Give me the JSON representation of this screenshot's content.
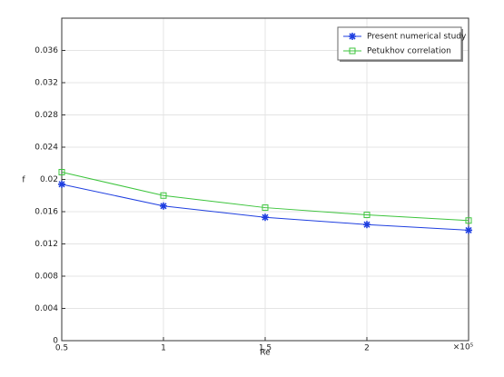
{
  "chart_data": {
    "type": "line",
    "x_label": "Re",
    "y_label": "f",
    "x_multiplier": "×10⁵",
    "x": [
      0.5,
      1,
      1.5,
      2,
      2.5
    ],
    "series": [
      {
        "name": "Present numerical study",
        "color": "#1f3fe0",
        "marker": "asterisk",
        "values": [
          0.0194,
          0.0167,
          0.0153,
          0.0144,
          0.0137
        ]
      },
      {
        "name": "Petukhov correlation",
        "color": "#3cc43c",
        "marker": "square",
        "values": [
          0.0209,
          0.018,
          0.0165,
          0.0156,
          0.0149
        ]
      }
    ],
    "xlim": [
      0.5,
      2.5
    ],
    "ylim": [
      0,
      0.04
    ],
    "xticks": [
      0.5,
      1,
      1.5,
      2
    ],
    "yticks": [
      0,
      0.004,
      0.008,
      0.012,
      0.016,
      0.02,
      0.024,
      0.028,
      0.032,
      0.036
    ],
    "grid": true,
    "legend": "top-right"
  }
}
